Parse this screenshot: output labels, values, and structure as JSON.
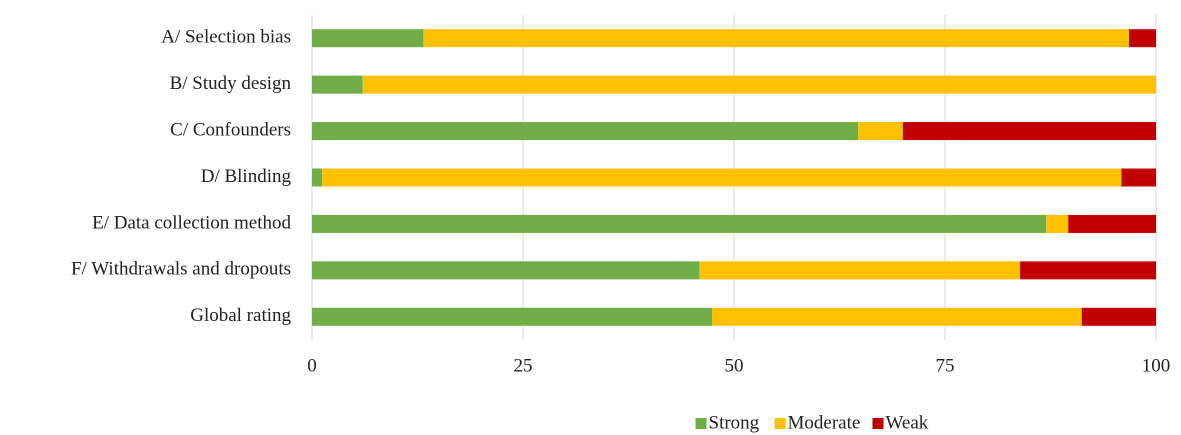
{
  "chart_data": {
    "type": "stacked_bar_horizontal",
    "categories": [
      "A/ Selection bias",
      "B/ Study design",
      "C/ Confounders",
      "D/ Blinding",
      "E/ Data collection method",
      "F/ Withdrawals and dropouts",
      "Global rating"
    ],
    "series": [
      {
        "name": "Strong",
        "color": "#70ad47",
        "values": [
          13.2,
          6.0,
          64.7,
          1.2,
          87.0,
          45.9,
          47.4
        ]
      },
      {
        "name": "Moderate",
        "color": "#ffc000",
        "values": [
          83.6,
          94.0,
          5.3,
          94.7,
          2.6,
          38.0,
          43.8
        ]
      },
      {
        "name": "Weak",
        "color": "#c00000",
        "values": [
          3.2,
          0,
          30.0,
          4.1,
          10.4,
          16.1,
          8.8
        ]
      }
    ],
    "xlim": [
      0,
      100
    ],
    "xticks": [
      0,
      25,
      50,
      75,
      100
    ],
    "grid": true,
    "legend": "bottom"
  }
}
